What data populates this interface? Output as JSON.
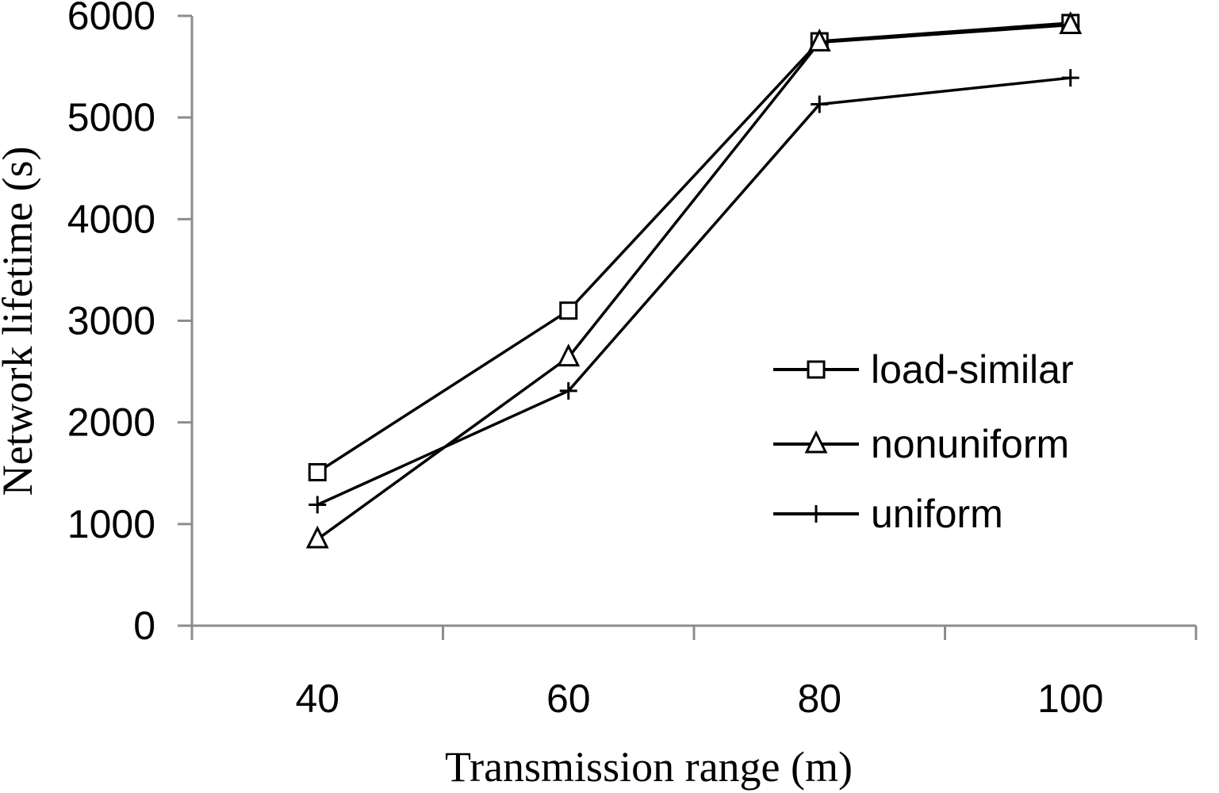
{
  "chart_data": {
    "type": "line",
    "title": "",
    "xlabel": "Transmission range (m)",
    "ylabel": "Network lifetime (s)",
    "categories": [
      "40",
      "60",
      "80",
      "100"
    ],
    "ylim": [
      0,
      6000
    ],
    "yticks": [
      "0",
      "1000",
      "2000",
      "3000",
      "4000",
      "5000",
      "6000"
    ],
    "grid": false,
    "legend_position": "right-middle",
    "series": [
      {
        "name": "load-similar",
        "marker": "square",
        "values": [
          1510,
          3100,
          5750,
          5930
        ]
      },
      {
        "name": "nonuniform",
        "marker": "triangle",
        "values": [
          850,
          2640,
          5740,
          5910
        ]
      },
      {
        "name": "uniform",
        "marker": "plus",
        "values": [
          1190,
          2310,
          5130,
          5390
        ]
      }
    ]
  }
}
